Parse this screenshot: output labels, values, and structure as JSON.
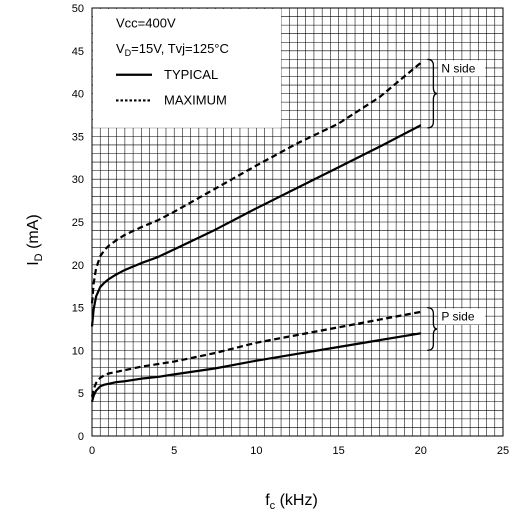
{
  "chart_data": {
    "type": "line",
    "xlabel": "f",
    "xlabel_sub": "c",
    "xlabel_unit": " (kHz)",
    "ylabel": "I",
    "ylabel_sub": "D",
    "ylabel_unit": " (mA)",
    "xlim": [
      0,
      25
    ],
    "ylim": [
      0,
      50
    ],
    "xticks": [
      "0",
      "5",
      "10",
      "15",
      "20",
      "25"
    ],
    "yticks": [
      "0",
      "5",
      "10",
      "15",
      "20",
      "25",
      "30",
      "35",
      "40",
      "45",
      "50"
    ],
    "grid": true,
    "conditions": {
      "line1": "Vcc=400V",
      "line2_prefix": "V",
      "line2_sub": "D",
      "line2_rest": "=15V, Tvj=125°C"
    },
    "legend": {
      "placement": "top-left",
      "typical": "TYPICAL",
      "maximum": "MAXIMUM"
    },
    "groups": [
      {
        "label": "N side",
        "y_range": [
          36,
          44
        ]
      },
      {
        "label": "P side",
        "y_range": [
          10,
          15
        ]
      }
    ],
    "series": [
      {
        "group": "N side",
        "style": "typical",
        "x": [
          0,
          0.1,
          0.25,
          0.5,
          0.75,
          1,
          1.5,
          2,
          3,
          4,
          5,
          7.5,
          10,
          12.5,
          15,
          17.5,
          20
        ],
        "values": [
          12.8,
          14.8,
          16.3,
          17.4,
          17.9,
          18.3,
          18.9,
          19.4,
          20.2,
          20.9,
          21.8,
          24.1,
          26.6,
          29.0,
          31.4,
          33.8,
          36.3
        ]
      },
      {
        "group": "N side",
        "style": "maximum",
        "x": [
          0,
          0.1,
          0.25,
          0.5,
          0.75,
          1,
          1.5,
          2,
          3,
          4,
          5,
          7.5,
          10,
          12.5,
          15,
          17.5,
          20
        ],
        "values": [
          15.5,
          17.8,
          19.6,
          21.0,
          21.7,
          22.2,
          22.9,
          23.5,
          24.4,
          25.2,
          26.2,
          28.9,
          31.6,
          34.2,
          36.5,
          39.6,
          43.6
        ]
      },
      {
        "group": "P side",
        "style": "typical",
        "x": [
          0,
          0.1,
          0.25,
          0.5,
          0.75,
          1,
          1.5,
          2,
          3,
          4,
          5,
          7.5,
          10,
          12.5,
          15,
          17.5,
          20
        ],
        "values": [
          4.0,
          4.7,
          5.3,
          5.8,
          6.0,
          6.1,
          6.3,
          6.4,
          6.7,
          6.9,
          7.2,
          7.9,
          8.8,
          9.6,
          10.4,
          11.2,
          12.0
        ]
      },
      {
        "group": "P side",
        "style": "maximum",
        "x": [
          0,
          0.1,
          0.25,
          0.5,
          0.75,
          1,
          1.5,
          2,
          3,
          4,
          5,
          7.5,
          10,
          12.5,
          15,
          17.5,
          20
        ],
        "values": [
          4.6,
          5.5,
          6.2,
          6.8,
          7.1,
          7.3,
          7.5,
          7.7,
          8.1,
          8.4,
          8.7,
          9.7,
          10.9,
          11.8,
          12.7,
          13.6,
          14.5
        ]
      }
    ]
  }
}
